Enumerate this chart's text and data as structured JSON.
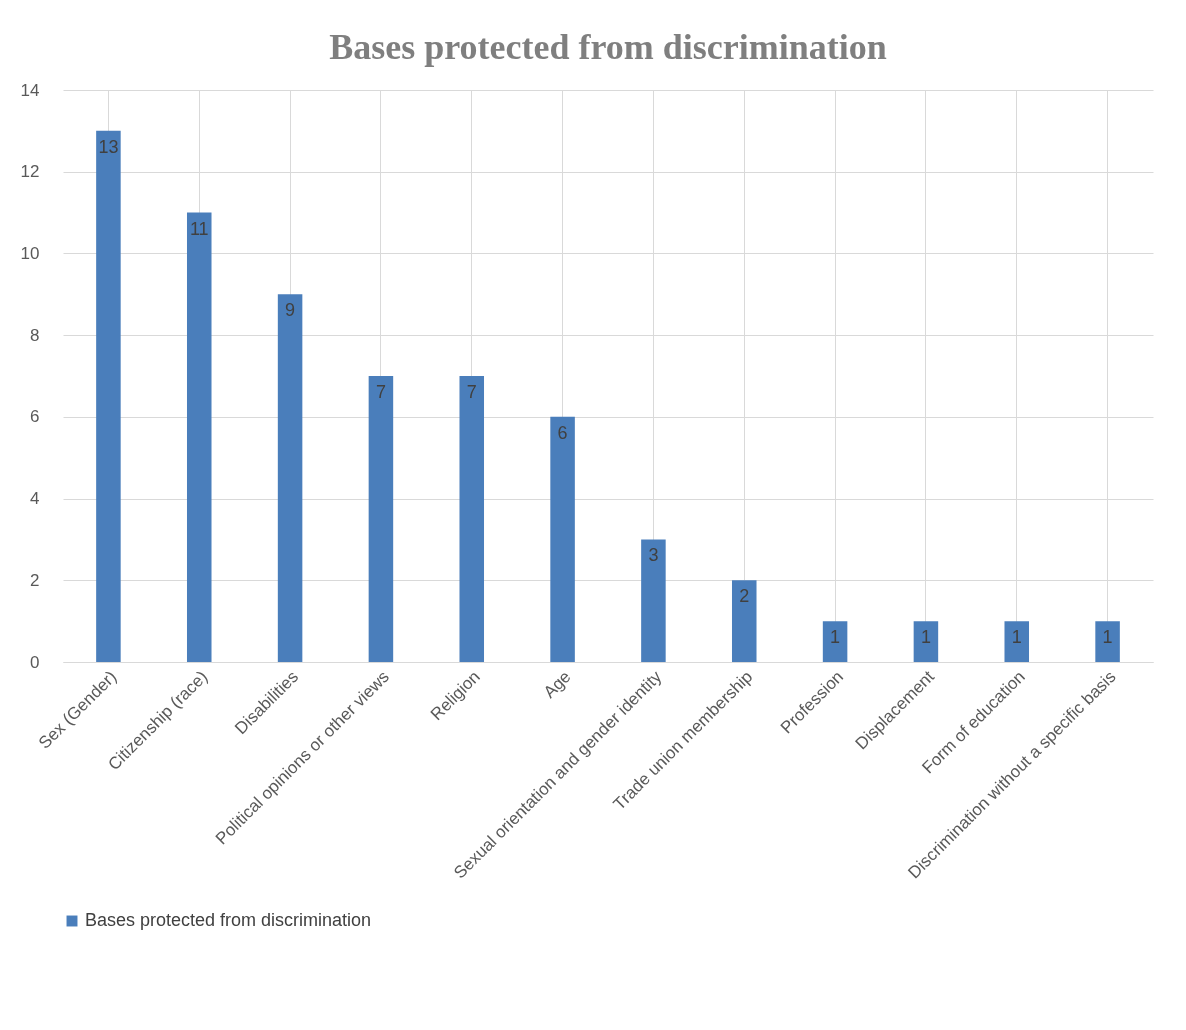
{
  "chart_data": {
    "type": "bar",
    "title": "Bases protected from discrimination",
    "categories": [
      "Sex (Gender)",
      "Citizenship (race)",
      "Disabilities",
      "Political opinions or other views",
      "Religion",
      "Age",
      "Sexual orientation and gender identity",
      "Trade union membership",
      "Profession",
      "Displacement",
      "Form of education",
      "Discrimination without a specific basis"
    ],
    "series": [
      {
        "name": "Bases protected from discrimination",
        "color": "#4a7ebb",
        "values": [
          13,
          11,
          9,
          7,
          7,
          6,
          3,
          2,
          1,
          1,
          1,
          1
        ]
      }
    ],
    "ylim": [
      0,
      14
    ],
    "yticks": [
      0,
      2,
      4,
      6,
      8,
      10,
      12,
      14
    ],
    "grid": true,
    "legend": "bottom",
    "data_labels": true
  }
}
